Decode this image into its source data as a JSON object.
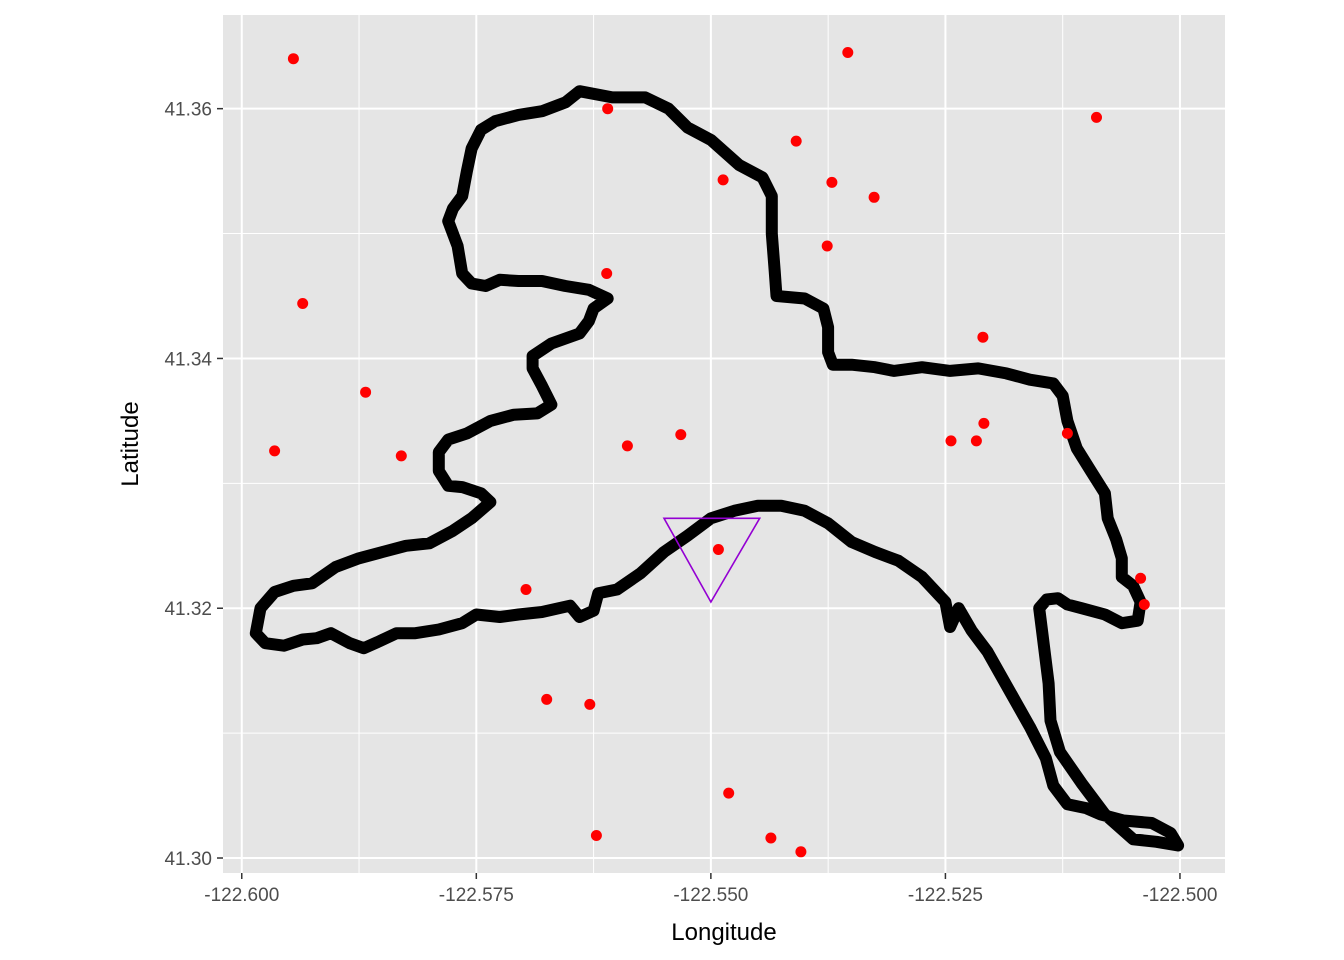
{
  "chart_data": {
    "type": "scatter",
    "title": "",
    "xlabel": "Longitude",
    "ylabel": "Latitude",
    "xlim": [
      -122.602,
      -122.4952
    ],
    "ylim": [
      41.2988,
      41.3675
    ],
    "x_ticks": [
      -122.6,
      -122.575,
      -122.55,
      -122.525,
      -122.5
    ],
    "x_tick_labels": [
      "-122.600",
      "-122.575",
      "-122.550",
      "-122.525",
      "-122.500"
    ],
    "y_ticks": [
      41.3,
      41.32,
      41.34,
      41.36
    ],
    "y_tick_labels": [
      "41.30",
      "41.32",
      "41.34",
      "41.36"
    ],
    "grid": true,
    "panel_color": "#e5e5e5",
    "grid_color": "#ffffff",
    "point_color": "#ff0000",
    "outline_color": "#000000",
    "triangle_color": "#9400d3",
    "points": [
      {
        "x": -122.5945,
        "y": 41.364
      },
      {
        "x": -122.5935,
        "y": 41.3444
      },
      {
        "x": -122.5965,
        "y": 41.3326
      },
      {
        "x": -122.5868,
        "y": 41.3373
      },
      {
        "x": -122.583,
        "y": 41.3322
      },
      {
        "x": -122.561,
        "y": 41.36
      },
      {
        "x": -122.5611,
        "y": 41.3468
      },
      {
        "x": -122.5589,
        "y": 41.333
      },
      {
        "x": -122.5532,
        "y": 41.3339
      },
      {
        "x": -122.5487,
        "y": 41.3543
      },
      {
        "x": -122.5409,
        "y": 41.3574
      },
      {
        "x": -122.5354,
        "y": 41.3645
      },
      {
        "x": -122.5371,
        "y": 41.3541
      },
      {
        "x": -122.5376,
        "y": 41.349
      },
      {
        "x": -122.5326,
        "y": 41.3529
      },
      {
        "x": -122.521,
        "y": 41.3417
      },
      {
        "x": -122.5209,
        "y": 41.3348
      },
      {
        "x": -122.5244,
        "y": 41.3334
      },
      {
        "x": -122.5217,
        "y": 41.3334
      },
      {
        "x": -122.512,
        "y": 41.334
      },
      {
        "x": -122.5089,
        "y": 41.3593
      },
      {
        "x": -122.5042,
        "y": 41.3224
      },
      {
        "x": -122.5038,
        "y": 41.3203
      },
      {
        "x": -122.5492,
        "y": 41.3247
      },
      {
        "x": -122.5697,
        "y": 41.3215
      },
      {
        "x": -122.5675,
        "y": 41.3127
      },
      {
        "x": -122.5629,
        "y": 41.3123
      },
      {
        "x": -122.5481,
        "y": 41.3052
      },
      {
        "x": -122.5622,
        "y": 41.3018
      },
      {
        "x": -122.5436,
        "y": 41.3016
      },
      {
        "x": -122.5404,
        "y": 41.3005
      }
    ],
    "outline": [
      [
        -122.564,
        41.3614
      ],
      [
        -122.5605,
        41.3609
      ],
      [
        -122.557,
        41.3609
      ],
      [
        -122.5545,
        41.36
      ],
      [
        -122.5525,
        41.3585
      ],
      [
        -122.55,
        41.3575
      ],
      [
        -122.547,
        41.3555
      ],
      [
        -122.5445,
        41.3545
      ],
      [
        -122.5435,
        41.353
      ],
      [
        -122.5435,
        41.35
      ],
      [
        -122.5432,
        41.347
      ],
      [
        -122.543,
        41.345
      ],
      [
        -122.54,
        41.3448
      ],
      [
        -122.538,
        41.344
      ],
      [
        -122.5375,
        41.3425
      ],
      [
        -122.5375,
        41.3405
      ],
      [
        -122.537,
        41.3395
      ],
      [
        -122.535,
        41.3395
      ],
      [
        -122.5325,
        41.3393
      ],
      [
        -122.5305,
        41.339
      ],
      [
        -122.5275,
        41.3393
      ],
      [
        -122.5245,
        41.339
      ],
      [
        -122.5215,
        41.3392
      ],
      [
        -122.5185,
        41.3388
      ],
      [
        -122.516,
        41.3383
      ],
      [
        -122.5135,
        41.338
      ],
      [
        -122.5125,
        41.337
      ],
      [
        -122.512,
        41.335
      ],
      [
        -122.511,
        41.3328
      ],
      [
        -122.5095,
        41.331
      ],
      [
        -122.508,
        41.3292
      ],
      [
        -122.5077,
        41.3272
      ],
      [
        -122.5068,
        41.3255
      ],
      [
        -122.5062,
        41.324
      ],
      [
        -122.5062,
        41.3225
      ],
      [
        -122.505,
        41.3218
      ],
      [
        -122.5042,
        41.3205
      ],
      [
        -122.5045,
        41.319
      ],
      [
        -122.5062,
        41.3188
      ],
      [
        -122.508,
        41.3195
      ],
      [
        -122.5105,
        41.32
      ],
      [
        -122.512,
        41.3203
      ],
      [
        -122.513,
        41.3208
      ],
      [
        -122.5142,
        41.3207
      ],
      [
        -122.515,
        41.32
      ],
      [
        -122.5145,
        41.317
      ],
      [
        -122.514,
        41.314
      ],
      [
        -122.5138,
        41.311
      ],
      [
        -122.5128,
        41.3085
      ],
      [
        -122.5105,
        41.306
      ],
      [
        -122.508,
        41.3035
      ],
      [
        -122.505,
        41.3015
      ],
      [
        -122.5025,
        41.3013
      ],
      [
        -122.5002,
        41.301
      ],
      [
        -122.501,
        41.302
      ],
      [
        -122.503,
        41.3028
      ],
      [
        -122.506,
        41.303
      ],
      [
        -122.5085,
        41.3035
      ],
      [
        -122.51,
        41.304
      ],
      [
        -122.512,
        41.3043
      ],
      [
        -122.5135,
        41.3058
      ],
      [
        -122.5143,
        41.308
      ],
      [
        -122.516,
        41.3105
      ],
      [
        -122.5175,
        41.3125
      ],
      [
        -122.519,
        41.3145
      ],
      [
        -122.5205,
        41.3165
      ],
      [
        -122.5222,
        41.3182
      ],
      [
        -122.5236,
        41.32
      ],
      [
        -122.5245,
        41.3185
      ],
      [
        -122.525,
        41.3205
      ],
      [
        -122.5275,
        41.3225
      ],
      [
        -122.53,
        41.3238
      ],
      [
        -122.5325,
        41.3245
      ],
      [
        -122.535,
        41.3253
      ],
      [
        -122.5375,
        41.3268
      ],
      [
        -122.54,
        41.3278
      ],
      [
        -122.5425,
        41.3282
      ],
      [
        -122.545,
        41.3282
      ],
      [
        -122.5475,
        41.3278
      ],
      [
        -122.55,
        41.3272
      ],
      [
        -122.5525,
        41.3258
      ],
      [
        -122.555,
        41.3245
      ],
      [
        -122.5575,
        41.3228
      ],
      [
        -122.56,
        41.3215
      ],
      [
        -122.562,
        41.3212
      ],
      [
        -122.5625,
        41.3198
      ],
      [
        -122.564,
        41.3193
      ],
      [
        -122.565,
        41.3202
      ],
      [
        -122.568,
        41.3197
      ],
      [
        -122.5705,
        41.3195
      ],
      [
        -122.5725,
        41.3193
      ],
      [
        -122.575,
        41.3195
      ],
      [
        -122.5765,
        41.3188
      ],
      [
        -122.579,
        41.3183
      ],
      [
        -122.5815,
        41.318
      ],
      [
        -122.5835,
        41.318
      ],
      [
        -122.5855,
        41.3173
      ],
      [
        -122.587,
        41.3168
      ],
      [
        -122.5885,
        41.3172
      ],
      [
        -122.5905,
        41.318
      ],
      [
        -122.592,
        41.3176
      ],
      [
        -122.5935,
        41.3175
      ],
      [
        -122.5955,
        41.317
      ],
      [
        -122.5975,
        41.3172
      ],
      [
        -122.5985,
        41.318
      ],
      [
        -122.598,
        41.32
      ],
      [
        -122.5965,
        41.3213
      ],
      [
        -122.5945,
        41.3218
      ],
      [
        -122.5925,
        41.322
      ],
      [
        -122.59,
        41.3233
      ],
      [
        -122.5875,
        41.324
      ],
      [
        -122.585,
        41.3245
      ],
      [
        -122.5825,
        41.325
      ],
      [
        -122.58,
        41.3252
      ],
      [
        -122.5775,
        41.3262
      ],
      [
        -122.5755,
        41.3272
      ],
      [
        -122.5735,
        41.3285
      ],
      [
        -122.5745,
        41.3292
      ],
      [
        -122.5765,
        41.3297
      ],
      [
        -122.578,
        41.3298
      ],
      [
        -122.579,
        41.331
      ],
      [
        -122.579,
        41.3325
      ],
      [
        -122.578,
        41.3335
      ],
      [
        -122.576,
        41.334
      ],
      [
        -122.5735,
        41.335
      ],
      [
        -122.571,
        41.3355
      ],
      [
        -122.5685,
        41.3356
      ],
      [
        -122.567,
        41.3363
      ],
      [
        -122.568,
        41.3378
      ],
      [
        -122.569,
        41.3392
      ],
      [
        -122.569,
        41.3402
      ],
      [
        -122.567,
        41.3412
      ],
      [
        -122.564,
        41.342
      ],
      [
        -122.563,
        41.343
      ],
      [
        -122.5625,
        41.344
      ],
      [
        -122.561,
        41.3448
      ],
      [
        -122.563,
        41.3455
      ],
      [
        -122.5655,
        41.3458
      ],
      [
        -122.568,
        41.3462
      ],
      [
        -122.5705,
        41.3462
      ],
      [
        -122.5725,
        41.3463
      ],
      [
        -122.574,
        41.3458
      ],
      [
        -122.5755,
        41.346
      ],
      [
        -122.5765,
        41.3468
      ],
      [
        -122.577,
        41.349
      ],
      [
        -122.578,
        41.351
      ],
      [
        -122.5775,
        41.352
      ],
      [
        -122.5765,
        41.353
      ],
      [
        -122.576,
        41.355
      ],
      [
        -122.5755,
        41.3568
      ],
      [
        -122.5745,
        41.3583
      ],
      [
        -122.573,
        41.359
      ],
      [
        -122.5705,
        41.3595
      ],
      [
        -122.568,
        41.3598
      ],
      [
        -122.5655,
        41.3605
      ],
      [
        -122.564,
        41.3614
      ]
    ],
    "triangle": [
      [
        -122.555,
        41.3272
      ],
      [
        -122.5448,
        41.3272
      ],
      [
        -122.55,
        41.3205
      ]
    ]
  }
}
